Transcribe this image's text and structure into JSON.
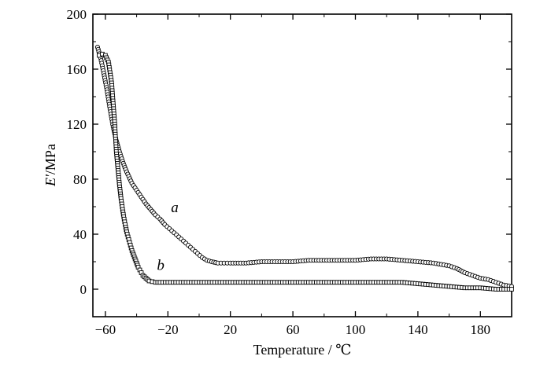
{
  "chart_data": {
    "type": "scatter",
    "title": "",
    "xlabel": "Temperature / ℃",
    "ylabel": "E'/MPa",
    "ylabel_symbol": "E'",
    "ylabel_unit": "/MPa",
    "xlim": [
      -68,
      200
    ],
    "ylim": [
      -20,
      200
    ],
    "xticks": [
      -60,
      -20,
      20,
      60,
      100,
      140,
      180
    ],
    "yticks": [
      0,
      40,
      80,
      120,
      160,
      200
    ],
    "grid": false,
    "legend": "none",
    "series": [
      {
        "name": "a",
        "marker": "circle",
        "points": [
          [
            -65,
            176
          ],
          [
            -63,
            168
          ],
          [
            -61,
            157
          ],
          [
            -59,
            145
          ],
          [
            -57,
            131
          ],
          [
            -55,
            118
          ],
          [
            -53,
            108
          ],
          [
            -51,
            100
          ],
          [
            -49,
            93
          ],
          [
            -47,
            87
          ],
          [
            -45,
            82
          ],
          [
            -43,
            77
          ],
          [
            -40,
            72
          ],
          [
            -37,
            67
          ],
          [
            -34,
            62
          ],
          [
            -31,
            58
          ],
          [
            -28,
            54
          ],
          [
            -25,
            51
          ],
          [
            -22,
            47
          ],
          [
            -19,
            44
          ],
          [
            -16,
            41
          ],
          [
            -13,
            38
          ],
          [
            -10,
            35
          ],
          [
            -7,
            32
          ],
          [
            -4,
            29
          ],
          [
            -1,
            26
          ],
          [
            2,
            23
          ],
          [
            5,
            21
          ],
          [
            8,
            20
          ],
          [
            12,
            19
          ],
          [
            16,
            19
          ],
          [
            20,
            19
          ],
          [
            30,
            19
          ],
          [
            40,
            20
          ],
          [
            50,
            20
          ],
          [
            60,
            20
          ],
          [
            70,
            21
          ],
          [
            80,
            21
          ],
          [
            90,
            21
          ],
          [
            100,
            21
          ],
          [
            110,
            22
          ],
          [
            120,
            22
          ],
          [
            130,
            21
          ],
          [
            140,
            20
          ],
          [
            150,
            19
          ],
          [
            155,
            18
          ],
          [
            160,
            17
          ],
          [
            165,
            15
          ],
          [
            170,
            12
          ],
          [
            175,
            10
          ],
          [
            180,
            8
          ],
          [
            185,
            7
          ],
          [
            190,
            5
          ],
          [
            195,
            3
          ],
          [
            200,
            2
          ]
        ]
      },
      {
        "name": "b",
        "marker": "square",
        "points": [
          [
            -64,
            170
          ],
          [
            -62,
            171
          ],
          [
            -60,
            170
          ],
          [
            -58,
            165
          ],
          [
            -56,
            150
          ],
          [
            -55,
            135
          ],
          [
            -54,
            120
          ],
          [
            -53,
            100
          ],
          [
            -52,
            88
          ],
          [
            -51,
            76
          ],
          [
            -50,
            66
          ],
          [
            -49,
            58
          ],
          [
            -48,
            51
          ],
          [
            -47,
            45
          ],
          [
            -46,
            40
          ],
          [
            -45,
            36
          ],
          [
            -44,
            32
          ],
          [
            -43,
            28
          ],
          [
            -42,
            25
          ],
          [
            -41,
            22
          ],
          [
            -40,
            19
          ],
          [
            -39,
            16
          ],
          [
            -38,
            14
          ],
          [
            -37,
            12
          ],
          [
            -36,
            10
          ],
          [
            -35,
            9
          ],
          [
            -34,
            8
          ],
          [
            -33,
            7
          ],
          [
            -32,
            6
          ],
          [
            -30,
            5.5
          ],
          [
            -28,
            5
          ],
          [
            -25,
            5
          ],
          [
            -20,
            5
          ],
          [
            -10,
            5
          ],
          [
            0,
            5
          ],
          [
            20,
            5
          ],
          [
            40,
            5
          ],
          [
            60,
            5
          ],
          [
            80,
            5
          ],
          [
            100,
            5
          ],
          [
            120,
            5
          ],
          [
            130,
            5
          ],
          [
            140,
            4
          ],
          [
            150,
            3
          ],
          [
            160,
            2
          ],
          [
            170,
            1
          ],
          [
            180,
            1
          ],
          [
            190,
            0
          ],
          [
            200,
            0
          ]
        ]
      }
    ],
    "annotations": [
      {
        "text": "a",
        "x": -18,
        "y": 56
      },
      {
        "text": "b",
        "x": -27,
        "y": 14
      }
    ]
  }
}
